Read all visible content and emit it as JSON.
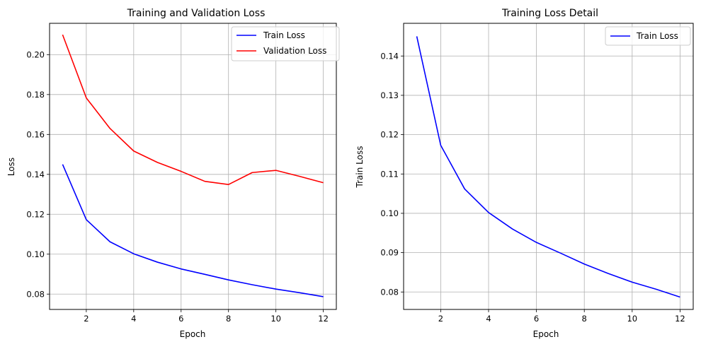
{
  "chart_data": [
    {
      "type": "line",
      "title": "Training and Validation Loss",
      "xlabel": "Epoch",
      "ylabel": "Loss",
      "xlim": [
        0.45,
        12.55
      ],
      "ylim": [
        0.0723,
        0.2157
      ],
      "xticks": [
        2,
        4,
        6,
        8,
        10,
        12
      ],
      "xtick_labels": [
        "2",
        "4",
        "6",
        "8",
        "10",
        "12"
      ],
      "yticks": [
        0.08,
        0.1,
        0.12,
        0.14,
        0.16,
        0.18,
        0.2
      ],
      "ytick_labels": [
        "0.08",
        "0.10",
        "0.12",
        "0.14",
        "0.16",
        "0.18",
        "0.20"
      ],
      "grid": true,
      "legend": "top-right",
      "x": [
        1,
        2,
        3,
        4,
        5,
        6,
        7,
        8,
        9,
        10,
        11,
        12
      ],
      "series": [
        {
          "name": "Train Loss",
          "color": "#0000ff",
          "values": [
            0.145,
            0.1173,
            0.1062,
            0.1002,
            0.096,
            0.0926,
            0.0899,
            0.0871,
            0.0847,
            0.0825,
            0.0807,
            0.0787
          ]
        },
        {
          "name": "Validation Loss",
          "color": "#ff0000",
          "values": [
            0.21,
            0.1783,
            0.163,
            0.1517,
            0.146,
            0.1415,
            0.1365,
            0.1349,
            0.1409,
            0.142,
            0.139,
            0.1358
          ]
        }
      ]
    },
    {
      "type": "line",
      "title": "Training Loss Detail",
      "xlabel": "Epoch",
      "ylabel": "Train Loss",
      "xlim": [
        0.45,
        12.55
      ],
      "ylim": [
        0.07556,
        0.14831
      ],
      "xticks": [
        2,
        4,
        6,
        8,
        10,
        12
      ],
      "xtick_labels": [
        "2",
        "4",
        "6",
        "8",
        "10",
        "12"
      ],
      "yticks": [
        0.08,
        0.09,
        0.1,
        0.11,
        0.12,
        0.13,
        0.14
      ],
      "ytick_labels": [
        "0.08",
        "0.09",
        "0.10",
        "0.11",
        "0.12",
        "0.13",
        "0.14"
      ],
      "grid": true,
      "legend": "top-right",
      "x": [
        1,
        2,
        3,
        4,
        5,
        6,
        7,
        8,
        9,
        10,
        11,
        12
      ],
      "series": [
        {
          "name": "Train Loss",
          "color": "#0000ff",
          "values": [
            0.145,
            0.1173,
            0.1062,
            0.1002,
            0.096,
            0.0926,
            0.0899,
            0.0871,
            0.0847,
            0.0825,
            0.0807,
            0.0787
          ]
        }
      ]
    }
  ]
}
